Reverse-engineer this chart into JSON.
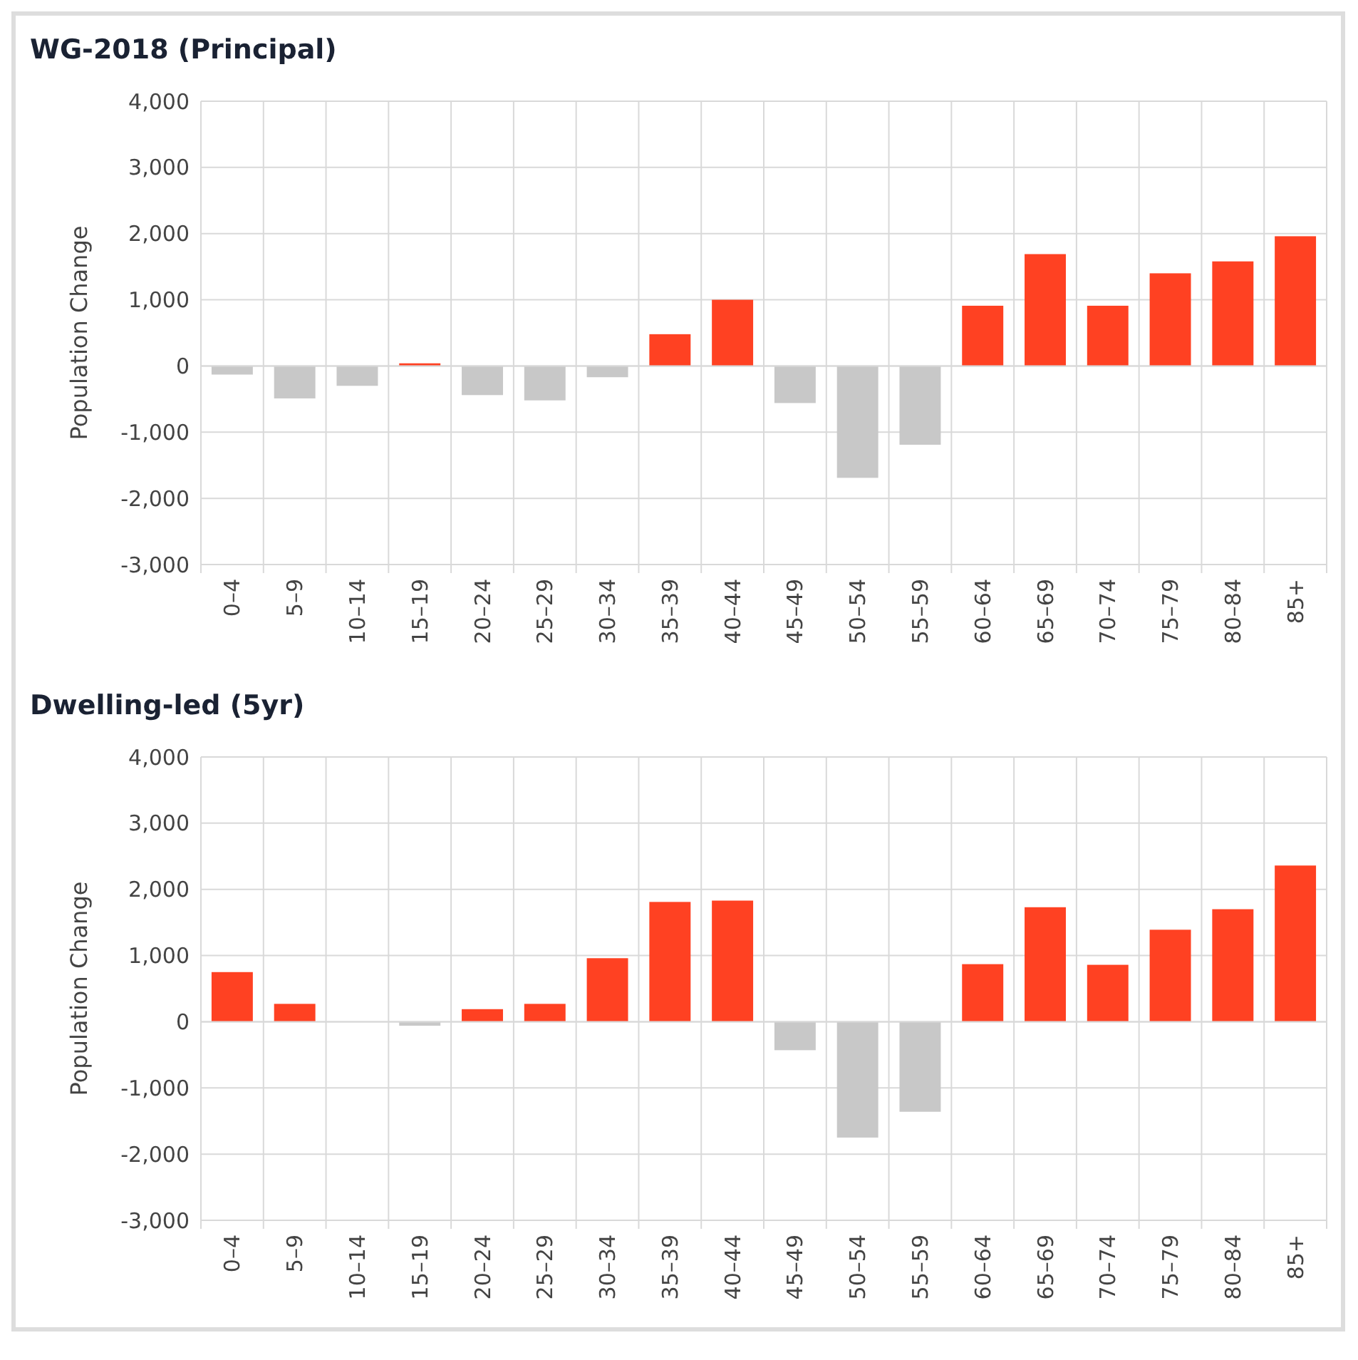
{
  "chart_data": [
    {
      "type": "bar",
      "title": "WG-2018 (Principal)",
      "ylabel": "Population Change",
      "categories": [
        "0–4",
        "5–9",
        "10–14",
        "15–19",
        "20–24",
        "25–29",
        "30–34",
        "35–39",
        "40–44",
        "45–49",
        "50–54",
        "55–59",
        "60–64",
        "65–69",
        "70–74",
        "75–79",
        "80–84",
        "85+"
      ],
      "values": [
        -130,
        -490,
        -300,
        40,
        -440,
        -520,
        -170,
        480,
        1000,
        -560,
        -1690,
        -1190,
        910,
        1690,
        910,
        1400,
        1580,
        1960
      ],
      "colors": [
        "#c8c8c8",
        "#c8c8c8",
        "#c8c8c8",
        "#ff4122",
        "#c8c8c8",
        "#c8c8c8",
        "#c8c8c8",
        "#ff4122",
        "#ff4122",
        "#c8c8c8",
        "#c8c8c8",
        "#c8c8c8",
        "#ff4122",
        "#ff4122",
        "#ff4122",
        "#ff4122",
        "#ff4122",
        "#ff4122"
      ],
      "ylim": [
        -3000,
        4000
      ],
      "yticks": [
        {
          "value": -3000,
          "label": "-3,000"
        },
        {
          "value": -2000,
          "label": "-2,000"
        },
        {
          "value": -1000,
          "label": "-1,000"
        },
        0,
        {
          "value": 1000,
          "label": "1,000"
        },
        {
          "value": 2000,
          "label": "2,000"
        },
        {
          "value": 3000,
          "label": "3,000"
        },
        {
          "value": 4000,
          "label": "4,000"
        }
      ],
      "grid": true
    },
    {
      "type": "bar",
      "title": "Dwelling-led (5yr)",
      "ylabel": "Population Change",
      "categories": [
        "0–4",
        "5–9",
        "10–14",
        "15–19",
        "20–24",
        "25–29",
        "30–34",
        "35–39",
        "40–44",
        "45–49",
        "50–54",
        "55–59",
        "60–64",
        "65–69",
        "70–74",
        "75–79",
        "80–84",
        "85+"
      ],
      "values": [
        750,
        270,
        0,
        -60,
        190,
        270,
        960,
        1810,
        1830,
        -430,
        -1750,
        -1360,
        870,
        1730,
        860,
        1390,
        1700,
        2360
      ],
      "colors": [
        "#ff4122",
        "#ff4122",
        "#ff4122",
        "#c8c8c8",
        "#ff4122",
        "#ff4122",
        "#ff4122",
        "#ff4122",
        "#ff4122",
        "#c8c8c8",
        "#c8c8c8",
        "#c8c8c8",
        "#ff4122",
        "#ff4122",
        "#ff4122",
        "#ff4122",
        "#ff4122",
        "#ff4122"
      ],
      "ylim": [
        -3000,
        4000
      ],
      "yticks": [
        {
          "value": -3000,
          "label": "-3,000"
        },
        {
          "value": -2000,
          "label": "-2,000"
        },
        {
          "value": -1000,
          "label": "-1,000"
        },
        0,
        {
          "value": 1000,
          "label": "1,000"
        },
        {
          "value": 2000,
          "label": "2,000"
        },
        {
          "value": 3000,
          "label": "3,000"
        },
        {
          "value": 4000,
          "label": "4,000"
        }
      ],
      "grid": true
    }
  ]
}
